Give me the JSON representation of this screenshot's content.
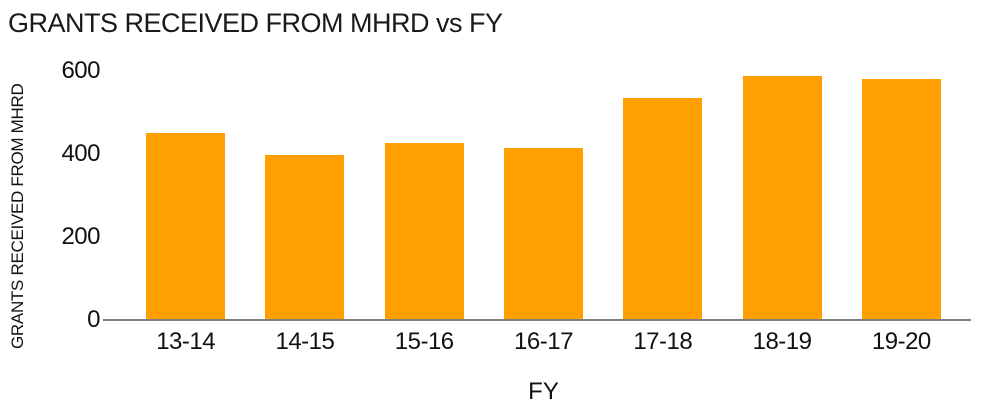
{
  "chart_data": {
    "type": "bar",
    "title": "GRANTS RECEIVED FROM MHRD vs FY",
    "xlabel": "FY",
    "ylabel": "GRANTS RECEIVED FROM MHRD",
    "categories": [
      "13-14",
      "14-15",
      "15-16",
      "16-17",
      "17-18",
      "18-19",
      "19-20"
    ],
    "values": [
      450,
      397,
      425,
      413,
      534,
      587,
      579
    ],
    "yticks": [
      0,
      200,
      400,
      600
    ],
    "ylim": [
      0,
      625
    ],
    "grid": false,
    "legend": false,
    "bar_color": "#FFA000",
    "axis_line_color": "#7f7f7f",
    "text_color": "#111111"
  }
}
